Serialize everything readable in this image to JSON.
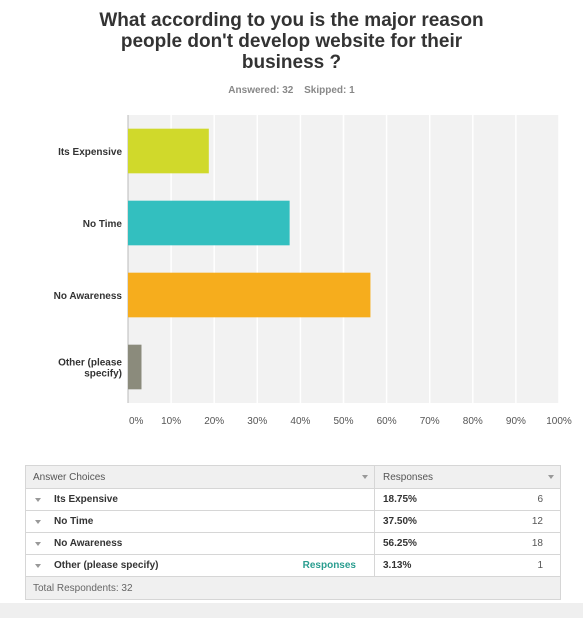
{
  "question": {
    "title_lines": [
      "What according to you is the major reason",
      "people don't develop website for their",
      "business ?"
    ],
    "answered": "Answered: 32",
    "skipped": "Skipped: 1"
  },
  "chart_data": {
    "type": "bar",
    "orientation": "horizontal",
    "categories": [
      "Its Expensive",
      "No Time",
      "No Awareness",
      "Other (please specify)"
    ],
    "category_label_lines": [
      [
        "Its Expensive"
      ],
      [
        "No Time"
      ],
      [
        "No Awareness"
      ],
      [
        "Other (please",
        "specify)"
      ]
    ],
    "values": [
      18.75,
      37.5,
      56.25,
      3.13
    ],
    "colors": [
      "#d0d92b",
      "#33bfbf",
      "#f6ad1d",
      "#8b8b7c"
    ],
    "xlim": [
      0,
      100
    ],
    "xticks": [
      "0%",
      "10%",
      "20%",
      "30%",
      "40%",
      "50%",
      "60%",
      "70%",
      "80%",
      "90%",
      "100%"
    ],
    "grid": true
  },
  "table": {
    "header": {
      "choices": "Answer Choices",
      "responses": "Responses"
    },
    "rows": [
      {
        "choice": "Its Expensive",
        "percent": "18.75%",
        "count": "6"
      },
      {
        "choice": "No Time",
        "percent": "37.50%",
        "count": "12"
      },
      {
        "choice": "No Awareness",
        "percent": "56.25%",
        "count": "18"
      },
      {
        "choice": "Other (please specify)",
        "link": "Responses",
        "percent": "3.13%",
        "count": "1"
      }
    ],
    "total": "Total Respondents: 32"
  }
}
